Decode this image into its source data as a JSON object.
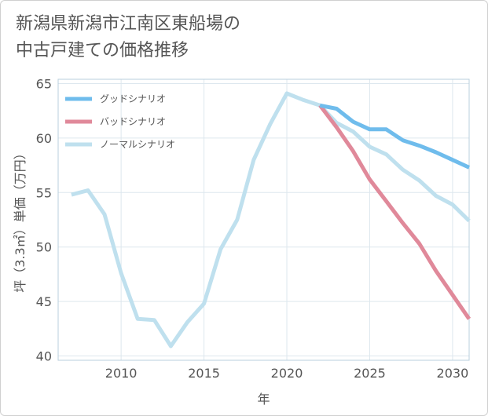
{
  "chart_data": {
    "type": "line",
    "title": "新潟県新潟市江南区東船場の\n中古戸建ての価格推移",
    "xlabel": "年",
    "ylabel": "坪（3.3㎡）単価（万円）",
    "xlim": [
      2006.2,
      2031
    ],
    "ylim": [
      39.6,
      65.4
    ],
    "xticks": [
      2010,
      2015,
      2020,
      2025,
      2030
    ],
    "yticks": [
      40,
      45,
      50,
      55,
      60,
      65
    ],
    "grid": true,
    "legend_position": "top-left",
    "series": [
      {
        "name": "グッドシナリオ",
        "color": "#6fbcec",
        "x": [
          2022,
          2023,
          2024,
          2025,
          2026,
          2027,
          2028,
          2029,
          2030,
          2031
        ],
        "y": [
          63.0,
          62.7,
          61.5,
          60.8,
          60.8,
          59.8,
          59.3,
          58.7,
          58.0,
          57.3
        ]
      },
      {
        "name": "バッドシナリオ",
        "color": "#e0899a",
        "x": [
          2022,
          2023,
          2024,
          2025,
          2026,
          2027,
          2028,
          2029,
          2030,
          2031
        ],
        "y": [
          63.0,
          61.0,
          58.8,
          56.2,
          54.2,
          52.2,
          50.3,
          47.8,
          45.6,
          43.4
        ]
      },
      {
        "name": "ノーマルシナリオ",
        "color": "#bfe0ee",
        "x": [
          2007,
          2008,
          2009,
          2010,
          2011,
          2012,
          2013,
          2014,
          2015,
          2016,
          2017,
          2018,
          2019,
          2020,
          2021,
          2022,
          2023,
          2024,
          2025,
          2026,
          2027,
          2028,
          2029,
          2030,
          2031
        ],
        "y": [
          54.8,
          55.2,
          53.0,
          47.6,
          43.4,
          43.3,
          40.9,
          43.1,
          44.8,
          49.8,
          52.5,
          58.0,
          61.3,
          64.1,
          63.5,
          63.0,
          61.4,
          60.6,
          59.2,
          58.5,
          57.1,
          56.1,
          54.7,
          53.9,
          52.4
        ]
      }
    ]
  }
}
